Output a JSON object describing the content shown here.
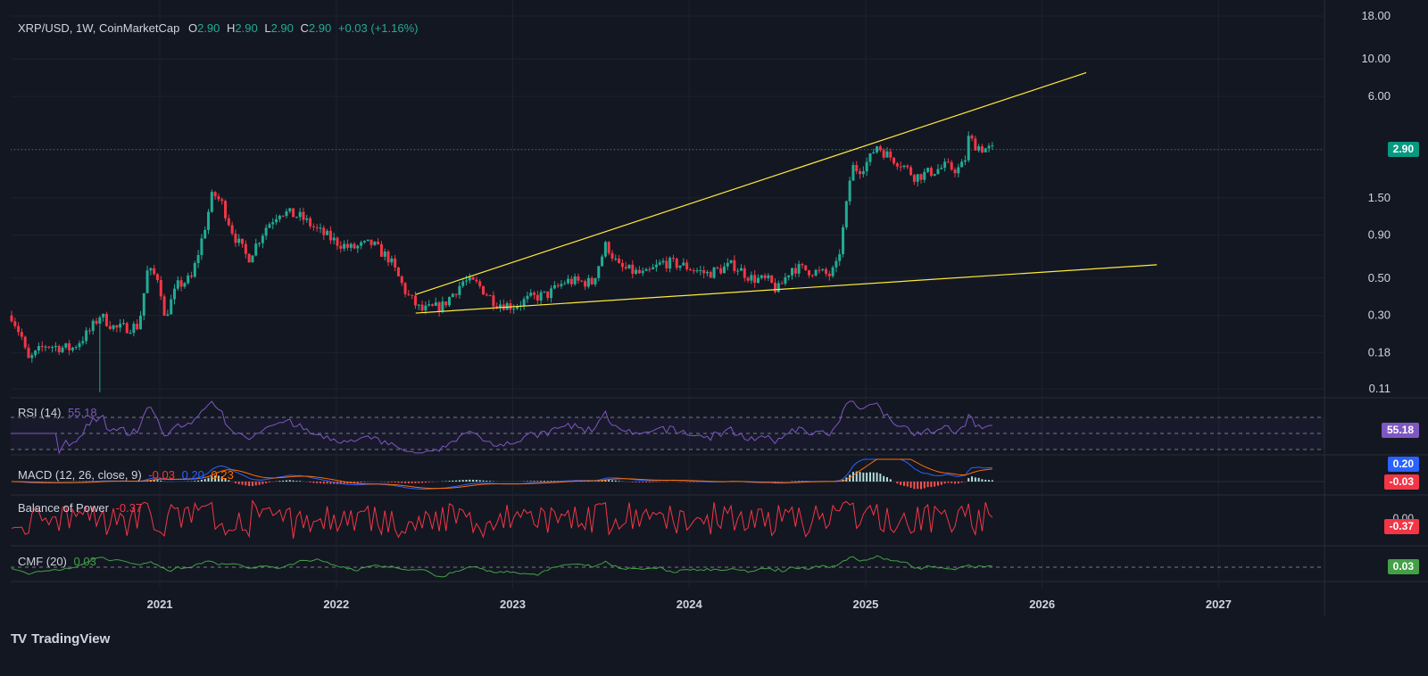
{
  "header": {
    "symbol": "XRP/USD, 1W, CoinMarketCap",
    "o_label": "O",
    "o_value": "2.90",
    "h_label": "H",
    "h_value": "2.90",
    "l_label": "L",
    "l_value": "2.90",
    "c_label": "C",
    "c_value": "2.90",
    "change": "+0.03 (+1.16%)"
  },
  "price_axis": {
    "ticks": [
      "18.00",
      "10.00",
      "6.00",
      "2.90",
      "1.50",
      "0.90",
      "0.50",
      "0.30",
      "0.18",
      "0.11"
    ],
    "last_price": "2.90"
  },
  "time_axis": {
    "labels": [
      "2021",
      "2022",
      "2023",
      "2024",
      "2025",
      "2026",
      "2027"
    ]
  },
  "indicators": {
    "rsi": {
      "label": "RSI (14)",
      "value": "55.18",
      "badge": "55.18"
    },
    "macd": {
      "label": "MACD (12, 26, close, 9)",
      "v1": "-0.03",
      "v2": "0.20",
      "v3": "0.23",
      "badge_blue": "0.20",
      "badge_red": "-0.03"
    },
    "bop": {
      "label": "Balance of Power",
      "value": "-0.37",
      "badge": "-0.37",
      "axis_tick": "0.00"
    },
    "cmf": {
      "label": "CMF (20)",
      "value": "0.03",
      "badge": "0.03"
    }
  },
  "branding": {
    "logo_text": "TradingView",
    "logo_mark": "TV"
  },
  "colors": {
    "bg": "#131722",
    "up": "#22ab94",
    "down": "#f23645",
    "trendline": "#ffeb3b",
    "rsi": "#7e57c2",
    "macd": "#2962ff",
    "signal": "#ff6d00",
    "bop": "#f23645",
    "cmf": "#43a047",
    "grid": "#1e222d"
  },
  "chart_data": {
    "type": "candlestick",
    "title": "XRP/USD, 1W, CoinMarketCap",
    "scale": "log",
    "ylim": [
      0.1,
      18
    ],
    "x_axis_labels": [
      "2021",
      "2022",
      "2023",
      "2024",
      "2025",
      "2026",
      "2027"
    ],
    "price_path": [
      {
        "t": 2020.16,
        "p": 0.3
      },
      {
        "t": 2020.22,
        "p": 0.22
      },
      {
        "t": 2020.25,
        "p": 0.16
      },
      {
        "t": 2020.35,
        "p": 0.2
      },
      {
        "t": 2020.5,
        "p": 0.19
      },
      {
        "t": 2020.6,
        "p": 0.24
      },
      {
        "t": 2020.66,
        "p": 0.3
      },
      {
        "t": 2020.75,
        "p": 0.25
      },
      {
        "t": 2020.88,
        "p": 0.26
      },
      {
        "t": 2020.93,
        "p": 0.55
      },
      {
        "t": 2021.0,
        "p": 0.5
      },
      {
        "t": 2021.02,
        "p": 0.28
      },
      {
        "t": 2021.1,
        "p": 0.45
      },
      {
        "t": 2021.18,
        "p": 0.5
      },
      {
        "t": 2021.25,
        "p": 0.95
      },
      {
        "t": 2021.3,
        "p": 1.6
      },
      {
        "t": 2021.35,
        "p": 1.4
      },
      {
        "t": 2021.42,
        "p": 0.9
      },
      {
        "t": 2021.5,
        "p": 0.65
      },
      {
        "t": 2021.6,
        "p": 1.0
      },
      {
        "t": 2021.68,
        "p": 1.25
      },
      {
        "t": 2021.8,
        "p": 1.15
      },
      {
        "t": 2021.9,
        "p": 0.95
      },
      {
        "t": 2022.0,
        "p": 0.82
      },
      {
        "t": 2022.08,
        "p": 0.75
      },
      {
        "t": 2022.2,
        "p": 0.8
      },
      {
        "t": 2022.3,
        "p": 0.65
      },
      {
        "t": 2022.4,
        "p": 0.4
      },
      {
        "t": 2022.48,
        "p": 0.32
      },
      {
        "t": 2022.6,
        "p": 0.34
      },
      {
        "t": 2022.72,
        "p": 0.48
      },
      {
        "t": 2022.8,
        "p": 0.46
      },
      {
        "t": 2022.9,
        "p": 0.36
      },
      {
        "t": 2023.0,
        "p": 0.34
      },
      {
        "t": 2023.1,
        "p": 0.38
      },
      {
        "t": 2023.2,
        "p": 0.4
      },
      {
        "t": 2023.3,
        "p": 0.48
      },
      {
        "t": 2023.45,
        "p": 0.47
      },
      {
        "t": 2023.53,
        "p": 0.8
      },
      {
        "t": 2023.6,
        "p": 0.58
      },
      {
        "t": 2023.75,
        "p": 0.52
      },
      {
        "t": 2023.85,
        "p": 0.62
      },
      {
        "t": 2023.95,
        "p": 0.6
      },
      {
        "t": 2024.1,
        "p": 0.53
      },
      {
        "t": 2024.25,
        "p": 0.6
      },
      {
        "t": 2024.35,
        "p": 0.5
      },
      {
        "t": 2024.45,
        "p": 0.48
      },
      {
        "t": 2024.5,
        "p": 0.42
      },
      {
        "t": 2024.58,
        "p": 0.58
      },
      {
        "t": 2024.7,
        "p": 0.55
      },
      {
        "t": 2024.8,
        "p": 0.52
      },
      {
        "t": 2024.84,
        "p": 0.6
      },
      {
        "t": 2024.88,
        "p": 1.1
      },
      {
        "t": 2024.92,
        "p": 2.3
      },
      {
        "t": 2024.96,
        "p": 2.2
      },
      {
        "t": 2025.02,
        "p": 2.5
      },
      {
        "t": 2025.06,
        "p": 3.1
      },
      {
        "t": 2025.12,
        "p": 2.7
      },
      {
        "t": 2025.2,
        "p": 2.4
      },
      {
        "t": 2025.28,
        "p": 2.0
      },
      {
        "t": 2025.35,
        "p": 2.1
      },
      {
        "t": 2025.45,
        "p": 2.3
      },
      {
        "t": 2025.52,
        "p": 2.2
      },
      {
        "t": 2025.56,
        "p": 2.4
      },
      {
        "t": 2025.58,
        "p": 3.4
      },
      {
        "t": 2025.62,
        "p": 3.1
      },
      {
        "t": 2025.66,
        "p": 2.95
      },
      {
        "t": 2025.72,
        "p": 2.9
      }
    ],
    "trendlines": [
      {
        "name": "upper",
        "from": {
          "t": 2022.45,
          "p": 0.4
        },
        "to": {
          "t": 2026.25,
          "p": 8.3
        }
      },
      {
        "name": "lower",
        "from": {
          "t": 2022.45,
          "p": 0.31
        },
        "to": {
          "t": 2026.65,
          "p": 0.6
        }
      }
    ],
    "last_price": 2.9,
    "indicators": {
      "rsi": {
        "period": 14,
        "last": 55.18,
        "levels": [
          70,
          50,
          30
        ]
      },
      "macd": {
        "params": [
          12,
          26,
          9
        ],
        "hist": -0.03,
        "macd": 0.2,
        "signal": 0.23
      },
      "bop": {
        "last": -0.37
      },
      "cmf": {
        "period": 20,
        "last": 0.03
      }
    }
  }
}
